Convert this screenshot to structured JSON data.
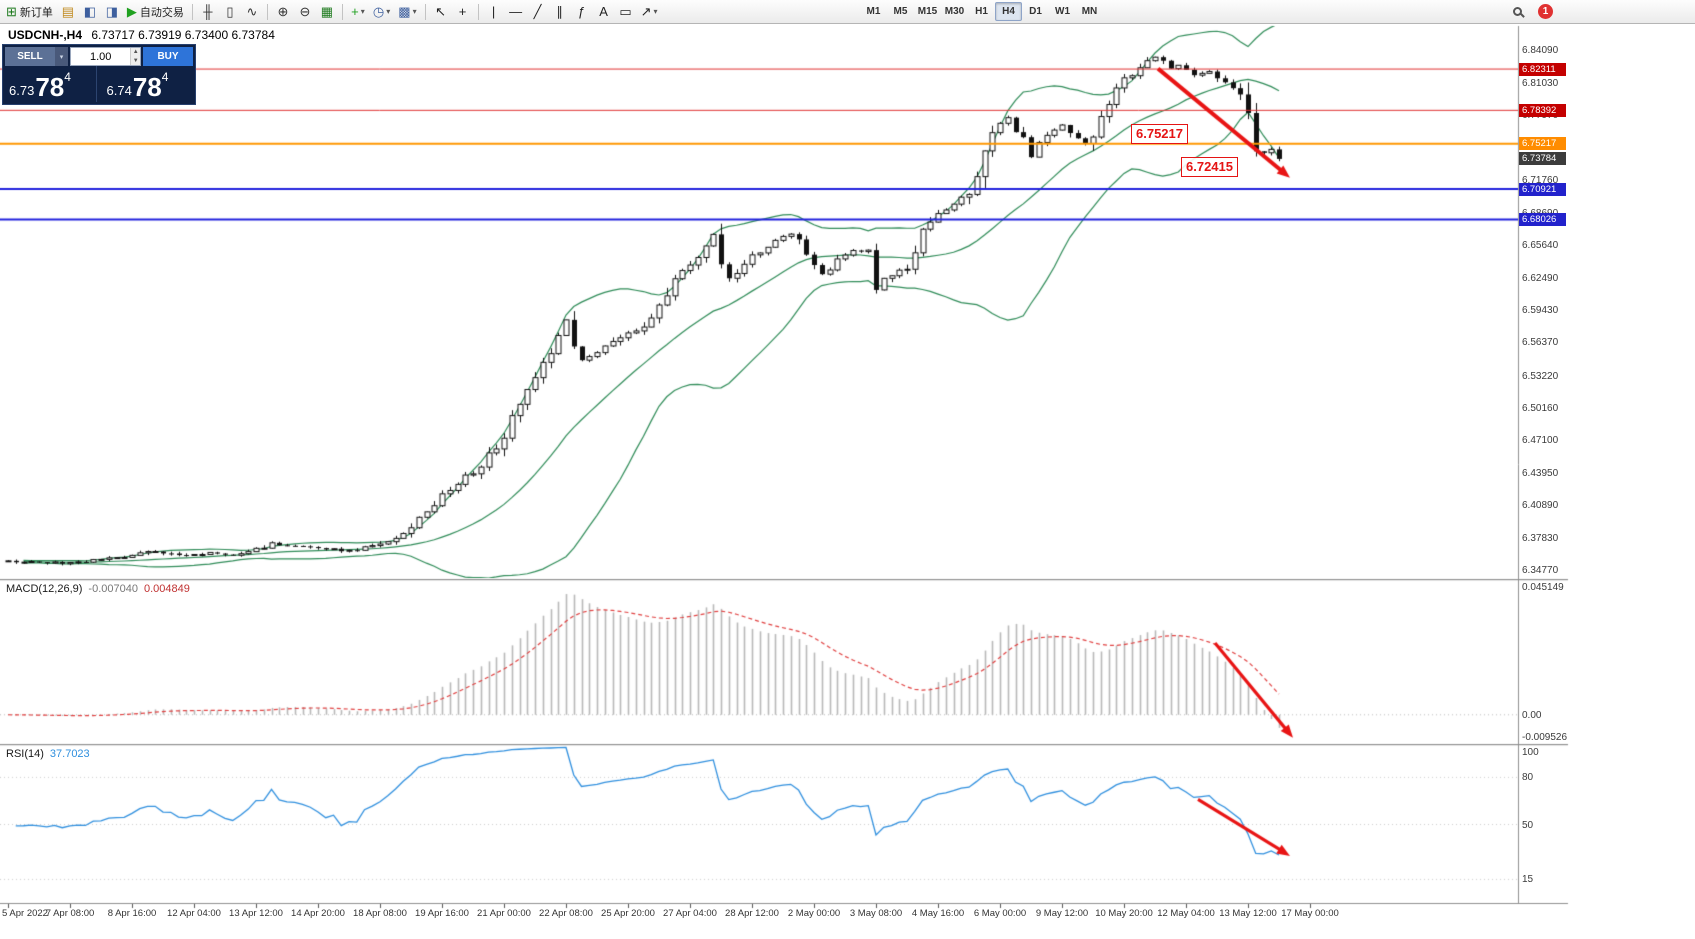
{
  "toolbar": {
    "items": [
      {
        "name": "new-order",
        "glyph": "⊞",
        "color": "#1d7a1d",
        "label": "新订单"
      },
      {
        "name": "market-watch",
        "glyph": "▤",
        "color": "#c08a1e"
      },
      {
        "name": "data-window",
        "glyph": "◧",
        "color": "#3d5f9e"
      },
      {
        "name": "navigator",
        "glyph": "◨",
        "color": "#3d5f9e"
      },
      {
        "name": "autotrading",
        "glyph": "▶",
        "color": "#1fa01f",
        "label": "自动交易"
      },
      {
        "sep": true
      },
      {
        "name": "bar-chart",
        "glyph": "╫",
        "color": "#333333"
      },
      {
        "name": "candlestick-chart",
        "glyph": "▯",
        "color": "#333333"
      },
      {
        "name": "line-chart",
        "glyph": "∿",
        "color": "#333333"
      },
      {
        "sep": true
      },
      {
        "name": "zoom-in",
        "glyph": "⊕",
        "color": "#333333"
      },
      {
        "name": "zoom-out",
        "glyph": "⊖",
        "color": "#333333"
      },
      {
        "name": "tile-windows",
        "glyph": "▦",
        "color": "#1d7a1d"
      },
      {
        "sep": true
      },
      {
        "name": "add-indicator",
        "glyph": "+",
        "color": "#1fa01f",
        "dropdown": true
      },
      {
        "name": "period-selector",
        "glyph": "◷",
        "color": "#3d5f9e",
        "dropdown": true
      },
      {
        "name": "template-selector",
        "glyph": "▩",
        "color": "#3d5f9e",
        "dropdown": true
      },
      {
        "sep": true
      },
      {
        "name": "cursor-tool",
        "glyph": "↖",
        "color": "#222222"
      },
      {
        "name": "crosshair-tool",
        "glyph": "+",
        "color": "#222222"
      },
      {
        "sep": true
      },
      {
        "name": "vertical-line-tool",
        "glyph": "|",
        "color": "#222222"
      },
      {
        "name": "horizontal-line-tool",
        "glyph": "—",
        "color": "#222222"
      },
      {
        "name": "trendline-tool",
        "glyph": "╱",
        "color": "#222222"
      },
      {
        "name": "channel-tool",
        "glyph": "∥",
        "color": "#222222"
      },
      {
        "name": "fibonacci-tool",
        "glyph": "ƒ",
        "color": "#222222"
      },
      {
        "name": "text-tool",
        "glyph": "A",
        "color": "#222222"
      },
      {
        "name": "label-tool",
        "glyph": "▭",
        "color": "#222222"
      },
      {
        "name": "arrows-tool",
        "glyph": "↗",
        "color": "#222222",
        "dropdown": true
      }
    ],
    "timeframes": [
      "M1",
      "M5",
      "M15",
      "M30",
      "H1",
      "H4",
      "D1",
      "W1",
      "MN"
    ],
    "active_timeframe": "H4",
    "notification_count": "1"
  },
  "chart": {
    "title_symbol": "USDCNH-,H4",
    "title_ohlc": "6.73717 6.73919 6.73400 6.73784"
  },
  "trade_panel": {
    "sell_label": "SELL",
    "buy_label": "BUY",
    "volume": "1.00",
    "sell_price": {
      "prefix": "6.73",
      "main": "78",
      "sup": "4"
    },
    "buy_price": {
      "prefix": "6.74",
      "main": "78",
      "sup": "4"
    }
  },
  "price_axis": {
    "labels": [
      "6.84090",
      "6.81030",
      "6.77970",
      "6.74910",
      "6.71760",
      "6.68690",
      "6.65640",
      "6.62490",
      "6.59430",
      "6.56370",
      "6.53220",
      "6.50160",
      "6.47100",
      "6.43950",
      "6.40890",
      "6.37830",
      "6.34770"
    ],
    "badges": [
      {
        "text": "6.82311",
        "price": 6.82311,
        "color": "#c40000"
      },
      {
        "text": "6.78392",
        "price": 6.78392,
        "color": "#c40000"
      },
      {
        "text": "6.75217",
        "price": 6.75217,
        "color": "#ff8c00"
      },
      {
        "text": "6.73784",
        "price": 6.73784,
        "color": "#3c3c3c"
      },
      {
        "text": "6.70921",
        "price": 6.70921,
        "color": "#2222cc"
      },
      {
        "text": "6.68026",
        "price": 6.68026,
        "color": "#2222cc"
      }
    ]
  },
  "annotations": {
    "label1": "6.75217",
    "label2": "6.72415"
  },
  "macd": {
    "label": "MACD(12,26,9)",
    "value": "-0.007040",
    "signal_value": "0.004849",
    "axis": [
      {
        "text": "0.045149",
        "v": 0.045149
      },
      {
        "text": "0.00",
        "v": 0
      },
      {
        "text": "-0.009526",
        "v": -0.009526
      }
    ]
  },
  "rsi": {
    "label": "RSI(14)",
    "value": "37.7023",
    "axis": [
      {
        "text": "100",
        "v": 100
      },
      {
        "text": "80",
        "v": 80
      },
      {
        "text": "50",
        "v": 50
      },
      {
        "text": "15",
        "v": 15
      }
    ]
  },
  "time_axis": [
    "5 Apr 2022",
    "7 Apr 08:00",
    "8 Apr 16:00",
    "12 Apr 04:00",
    "13 Apr 12:00",
    "14 Apr 20:00",
    "18 Apr 08:00",
    "19 Apr 16:00",
    "21 Apr 00:00",
    "22 Apr 08:00",
    "25 Apr 20:00",
    "27 Apr 04:00",
    "28 Apr 12:00",
    "2 May 00:00",
    "3 May 08:00",
    "4 May 16:00",
    "6 May 00:00",
    "9 May 12:00",
    "10 May 20:00",
    "12 May 04:00",
    "13 May 12:00",
    "17 May 00:00"
  ],
  "chart_data": {
    "type": "candlestick",
    "symbol": "USDCNH",
    "timeframe": "H4",
    "bars": 165,
    "price_range": [
      6.34,
      6.864
    ],
    "last_ohlc": {
      "open": 6.73717,
      "high": 6.73919,
      "low": 6.734,
      "close": 6.73784
    },
    "price_waypoints": [
      [
        0,
        6.356
      ],
      [
        7,
        6.3545
      ],
      [
        12,
        6.357
      ],
      [
        16,
        6.361
      ],
      [
        19,
        6.3655
      ],
      [
        22,
        6.362
      ],
      [
        26,
        6.3635
      ],
      [
        30,
        6.362
      ],
      [
        34,
        6.3725
      ],
      [
        36,
        6.371
      ],
      [
        40,
        6.368
      ],
      [
        44,
        6.366
      ],
      [
        48,
        6.371
      ],
      [
        51,
        6.384
      ],
      [
        53,
        6.397
      ],
      [
        56,
        6.417
      ],
      [
        58,
        6.431
      ],
      [
        61,
        6.446
      ],
      [
        63,
        6.464
      ],
      [
        66,
        6.504
      ],
      [
        68,
        6.528
      ],
      [
        70,
        6.555
      ],
      [
        72,
        6.583
      ],
      [
        73,
        6.562
      ],
      [
        74,
        6.545
      ],
      [
        76,
        6.552
      ],
      [
        78,
        6.564
      ],
      [
        80,
        6.574
      ],
      [
        82,
        6.578
      ],
      [
        84,
        6.599
      ],
      [
        86,
        6.624
      ],
      [
        88,
        6.639
      ],
      [
        90,
        6.657
      ],
      [
        91,
        6.667
      ],
      [
        93,
        6.624
      ],
      [
        94,
        6.632
      ],
      [
        96,
        6.647
      ],
      [
        98,
        6.654
      ],
      [
        101,
        6.667
      ],
      [
        103,
        6.651
      ],
      [
        105,
        6.627
      ],
      [
        107,
        6.644
      ],
      [
        109,
        6.651
      ],
      [
        111,
        6.649
      ],
      [
        112,
        6.617
      ],
      [
        114,
        6.627
      ],
      [
        116,
        6.637
      ],
      [
        118,
        6.671
      ],
      [
        120,
        6.687
      ],
      [
        122,
        6.694
      ],
      [
        124,
        6.704
      ],
      [
        126,
        6.739
      ],
      [
        127,
        6.767
      ],
      [
        129,
        6.777
      ],
      [
        131,
        6.757
      ],
      [
        132,
        6.741
      ],
      [
        134,
        6.761
      ],
      [
        136,
        6.769
      ],
      [
        138,
        6.757
      ],
      [
        139,
        6.751
      ],
      [
        141,
        6.774
      ],
      [
        142,
        6.794
      ],
      [
        144,
        6.814
      ],
      [
        146,
        6.824
      ],
      [
        148,
        6.834
      ],
      [
        150,
        6.824
      ],
      [
        151,
        6.827
      ],
      [
        153,
        6.817
      ],
      [
        155,
        6.821
      ],
      [
        156,
        6.814
      ],
      [
        158,
        6.804
      ],
      [
        160,
        6.787
      ],
      [
        161,
        6.752
      ],
      [
        162,
        6.742
      ],
      [
        163,
        6.746
      ],
      [
        164,
        6.73784
      ]
    ],
    "horizontal_lines": [
      {
        "price": 6.82311,
        "color": "#e03030",
        "width": 1
      },
      {
        "price": 6.78392,
        "color": "#e03030",
        "width": 1
      },
      {
        "price": 6.75217,
        "color": "#ff9800",
        "width": 2
      },
      {
        "price": 6.70921,
        "color": "#2020dd",
        "width": 2
      },
      {
        "price": 6.68026,
        "color": "#2020dd",
        "width": 2
      }
    ],
    "bollinger": {
      "period": 20,
      "deviation": 2,
      "color": "#2e8b57"
    },
    "macd": {
      "fast": 12,
      "slow": 26,
      "signal": 9,
      "scale_max": 0.045149,
      "scale_min": -0.009526,
      "histogram_color": "#b9b9b9",
      "signal_color": "#e04040"
    },
    "rsi": {
      "period": 14,
      "levels": [
        80,
        50,
        15
      ],
      "color": "#2f8fde"
    },
    "arrows": [
      {
        "panel": "price",
        "from": [
          1158,
          6.8235
        ],
        "to": [
          1290,
          6.72
        ],
        "color": "#e81414"
      },
      {
        "panel": "macd",
        "from": [
          1215,
          0.025
        ],
        "to": [
          1293,
          -0.008
        ],
        "color": "#e81414"
      },
      {
        "panel": "rsi",
        "from": [
          1198,
          66
        ],
        "to": [
          1290,
          30
        ],
        "color": "#e81414"
      }
    ]
  }
}
